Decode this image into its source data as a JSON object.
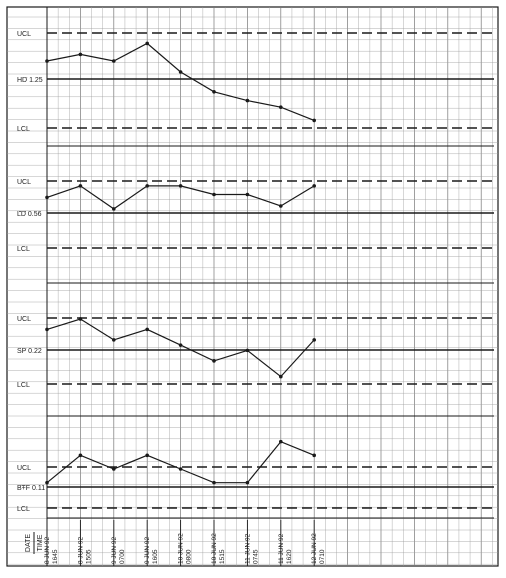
{
  "colors": {
    "ink": "#1a1a1a",
    "grid": "#9a9a9a",
    "paper": "#ffffff"
  },
  "axis": {
    "label_top": "DATE",
    "label_bottom": "TIME"
  },
  "chart_data": {
    "type": "line",
    "grid": true,
    "x": [
      {
        "date": "8 JUN 92",
        "time": "1645"
      },
      {
        "date": "8 JUN 92",
        "time": "1505"
      },
      {
        "date": "9 JUN 92",
        "time": "0700"
      },
      {
        "date": "9 JUN 92",
        "time": "1605"
      },
      {
        "date": "10 JUN 92",
        "time": "0800"
      },
      {
        "date": "10 JUN 92",
        "time": "1515"
      },
      {
        "date": "11 JUN 92",
        "time": "0745"
      },
      {
        "date": "11 JUN 92",
        "time": "1620"
      },
      {
        "date": "12 JUN 92",
        "time": "0710"
      }
    ],
    "panels": [
      {
        "mean_label": "HD",
        "mean_value": "1.25",
        "ucl_label": "UCL",
        "lcl_label": "LCL",
        "values": [
          1.45,
          1.48,
          1.45,
          1.53,
          1.4,
          1.31,
          1.27,
          1.24,
          1.18
        ]
      },
      {
        "mean_label": "LD",
        "mean_value": "0.56",
        "ucl_label": "UCL",
        "lcl_label": "LCL",
        "values": [
          0.72,
          0.76,
          0.68,
          0.76,
          0.76,
          0.73,
          0.73,
          0.69,
          0.76
        ]
      },
      {
        "mean_label": "SP",
        "mean_value": "0.22",
        "ucl_label": "UCL",
        "lcl_label": "LCL",
        "values": [
          0.27,
          0.29,
          0.25,
          0.27,
          0.24,
          0.21,
          0.23,
          0.18,
          0.25
        ]
      },
      {
        "mean_label": "B+F",
        "mean_value": "0.11",
        "ucl_label": "UCL",
        "lcl_label": "LCL",
        "values": [
          0.09,
          0.13,
          0.11,
          0.13,
          0.11,
          0.09,
          0.09,
          0.15,
          0.13
        ]
      }
    ]
  }
}
